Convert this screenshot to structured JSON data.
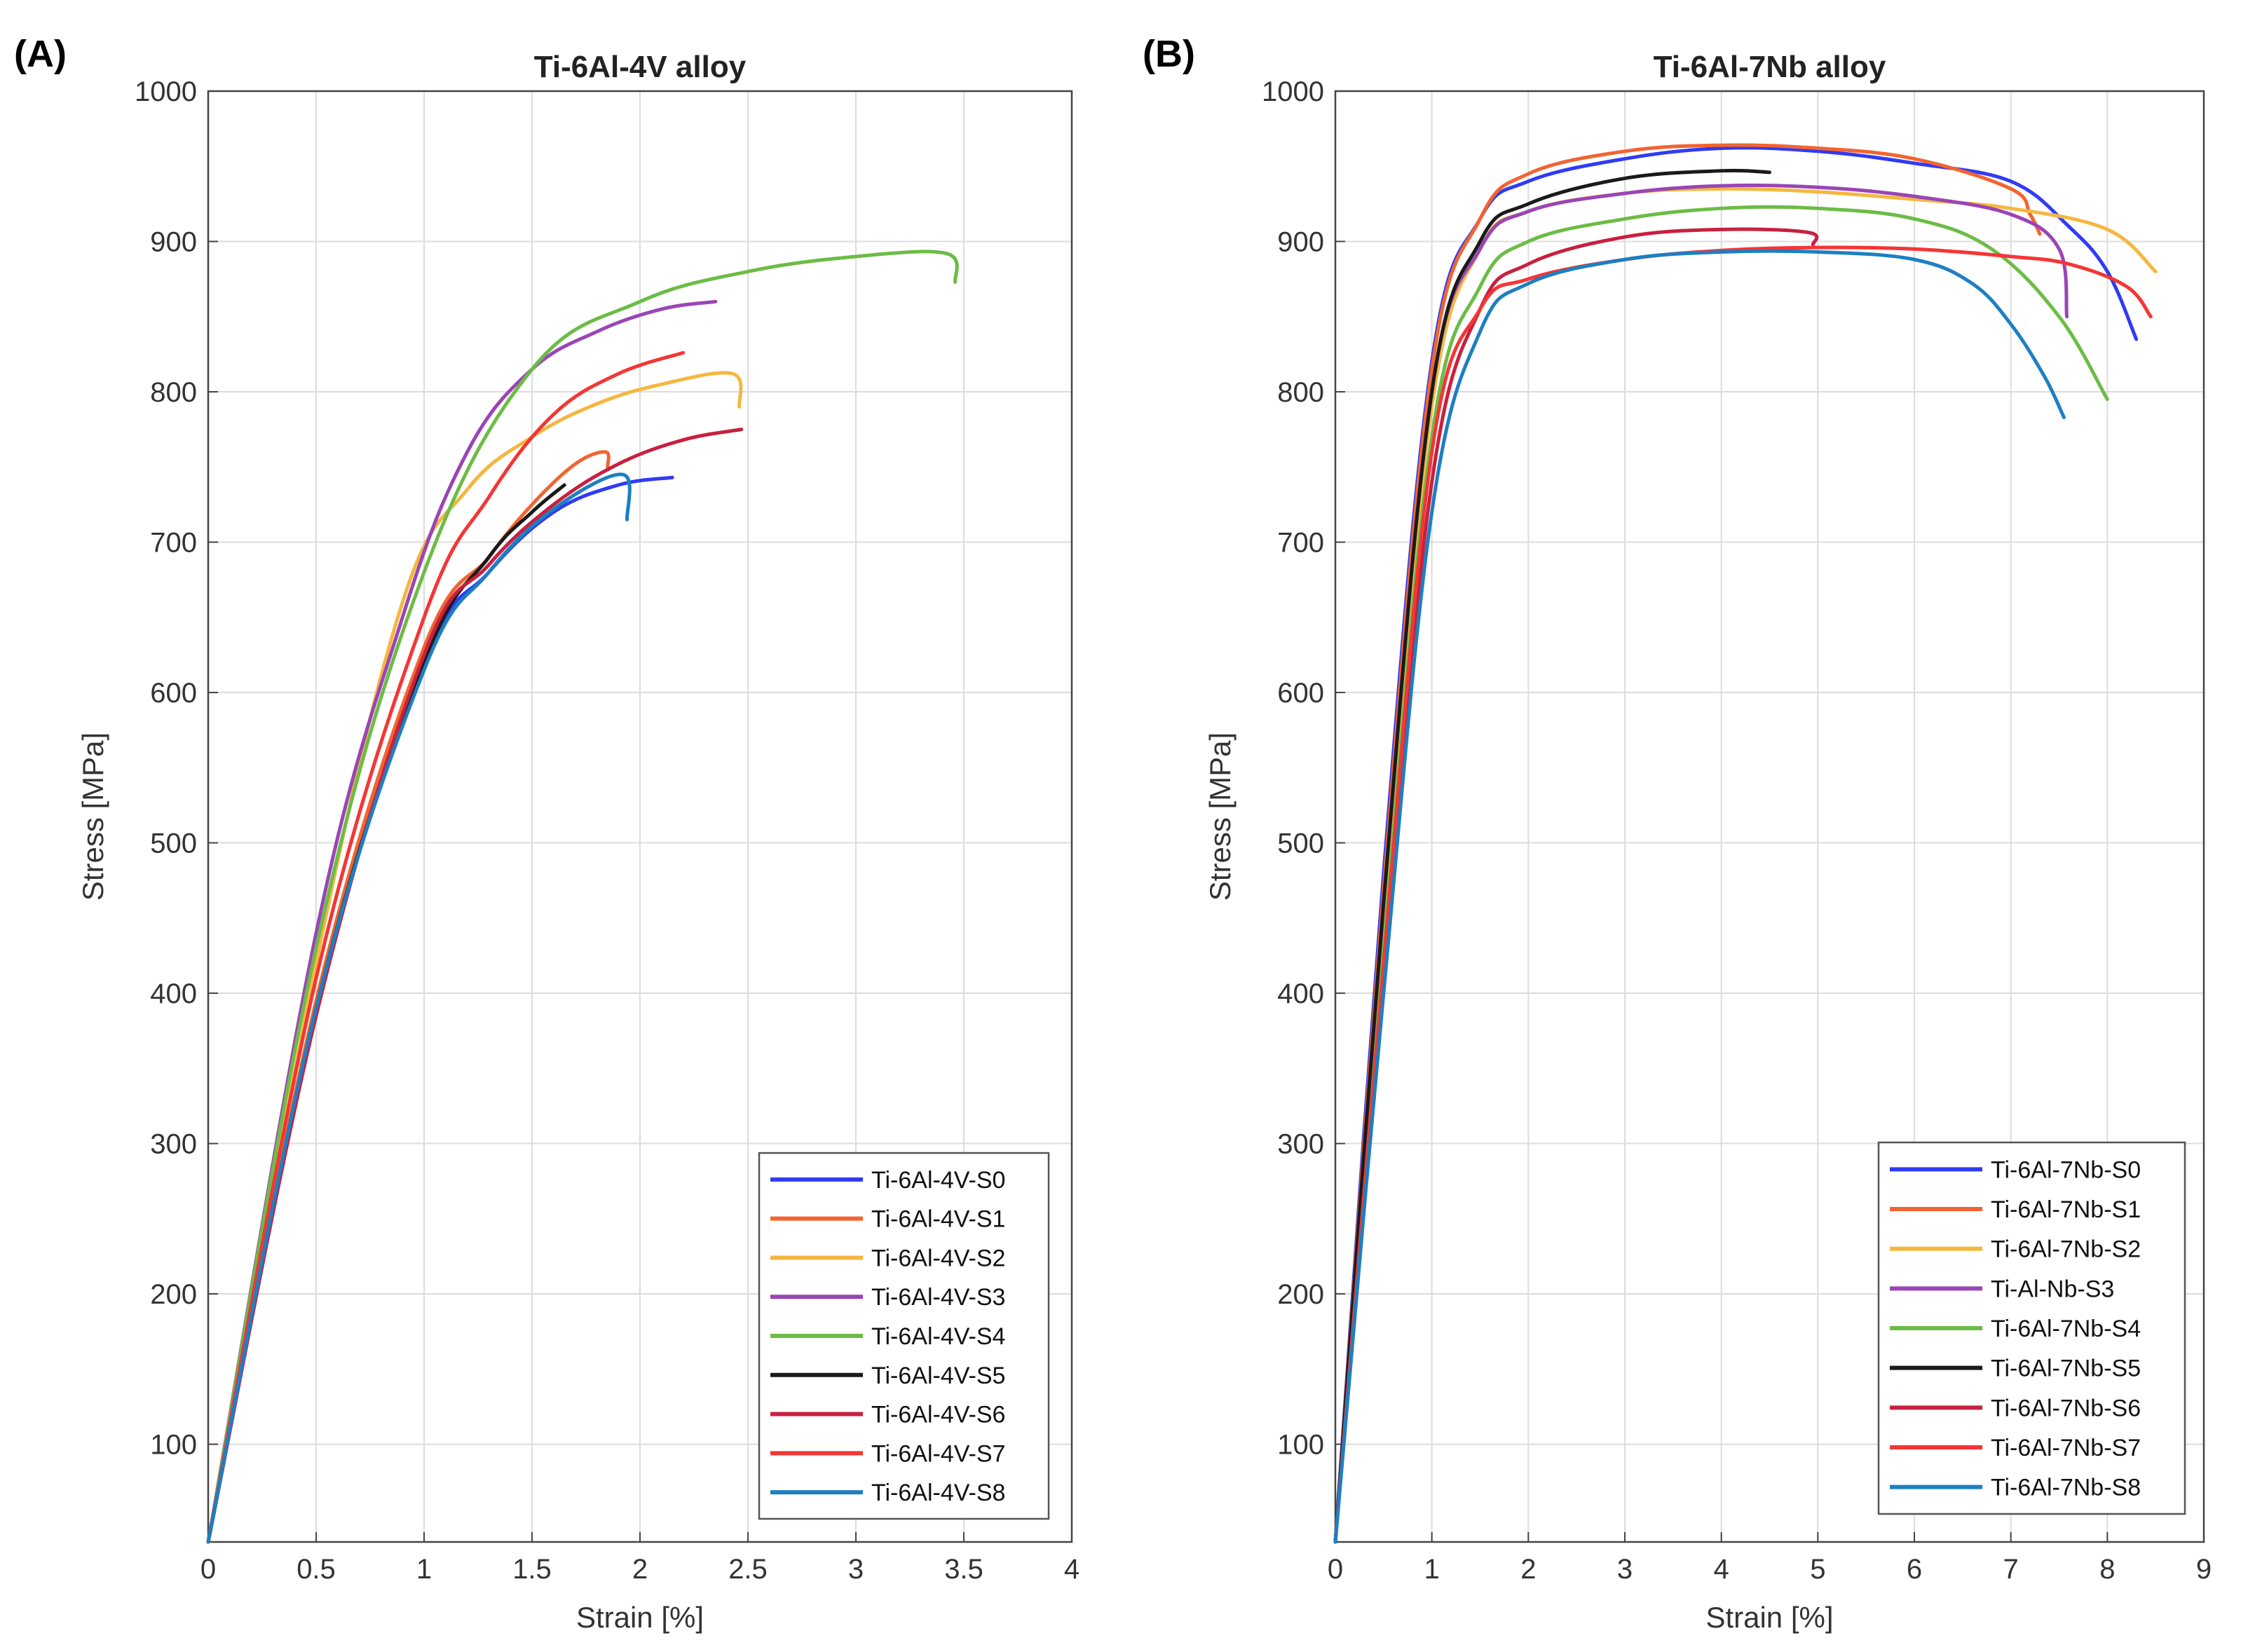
{
  "chart_data": [
    {
      "type": "line",
      "panel_label": "(A)",
      "title": "Ti-6Al-4V alloy",
      "xlabel": "Strain [%]",
      "ylabel": "Stress [MPa]",
      "xlim": [
        0,
        4
      ],
      "ylim": [
        35,
        1000
      ],
      "xticks": [
        0,
        0.5,
        1,
        1.5,
        2,
        2.5,
        3,
        3.5,
        4
      ],
      "xtick_labels": [
        "0",
        "0.5",
        "1",
        "1.5",
        "2",
        "2.5",
        "3",
        "3.5",
        "4"
      ],
      "yticks": [
        100,
        200,
        300,
        400,
        500,
        600,
        700,
        800,
        900,
        1000
      ],
      "ytick_labels": [
        "100",
        "200",
        "300",
        "400",
        "500",
        "600",
        "700",
        "800",
        "900",
        "1000"
      ],
      "grid": true,
      "legend_position": "bottom-right",
      "series": [
        {
          "name": "Ti-6Al-4V-S0",
          "color": "#2f3bf5",
          "points": [
            [
              0,
              35
            ],
            [
              0.5,
              390
            ],
            [
              1,
              620
            ],
            [
              1.3,
              680
            ],
            [
              1.6,
              720
            ],
            [
              1.9,
              738
            ],
            [
              2.15,
              743
            ]
          ]
        },
        {
          "name": "Ti-6Al-4V-S1",
          "color": "#f26430",
          "points": [
            [
              0,
              35
            ],
            [
              0.5,
              395
            ],
            [
              1,
              630
            ],
            [
              1.3,
              690
            ],
            [
              1.5,
              725
            ],
            [
              1.7,
              752
            ],
            [
              1.84,
              760
            ],
            [
              1.85,
              750
            ]
          ]
        },
        {
          "name": "Ti-6Al-4V-S2",
          "color": "#f5b740",
          "points": [
            [
              0,
              35
            ],
            [
              0.5,
              420
            ],
            [
              0.9,
              660
            ],
            [
              1.2,
              735
            ],
            [
              1.5,
              770
            ],
            [
              1.8,
              792
            ],
            [
              2.1,
              805
            ],
            [
              2.43,
              812
            ],
            [
              2.46,
              790
            ]
          ]
        },
        {
          "name": "Ti-6Al-4V-S3",
          "color": "#9a45b5",
          "points": [
            [
              0,
              35
            ],
            [
              0.5,
              440
            ],
            [
              0.9,
              650
            ],
            [
              1.2,
              760
            ],
            [
              1.5,
              815
            ],
            [
              1.8,
              840
            ],
            [
              2.1,
              855
            ],
            [
              2.35,
              860
            ]
          ]
        },
        {
          "name": "Ti-6Al-4V-S4",
          "color": "#6cbc45",
          "points": [
            [
              0,
              35
            ],
            [
              0.5,
              430
            ],
            [
              1,
              680
            ],
            [
              1.5,
              815
            ],
            [
              2,
              860
            ],
            [
              2.5,
              880
            ],
            [
              3,
              890
            ],
            [
              3.42,
              892
            ],
            [
              3.46,
              873
            ]
          ]
        },
        {
          "name": "Ti-6Al-4V-S5",
          "color": "#1a1a1a",
          "points": [
            [
              0,
              35
            ],
            [
              0.5,
              390
            ],
            [
              1,
              620
            ],
            [
              1.3,
              690
            ],
            [
              1.5,
              720
            ],
            [
              1.65,
              738
            ]
          ]
        },
        {
          "name": "Ti-6Al-4V-S6",
          "color": "#c8203f",
          "points": [
            [
              0,
              35
            ],
            [
              0.5,
              385
            ],
            [
              1,
              625
            ],
            [
              1.3,
              685
            ],
            [
              1.6,
              725
            ],
            [
              1.9,
              752
            ],
            [
              2.2,
              768
            ],
            [
              2.47,
              775
            ]
          ]
        },
        {
          "name": "Ti-6Al-4V-S7",
          "color": "#f53535",
          "points": [
            [
              0,
              35
            ],
            [
              0.5,
              410
            ],
            [
              1,
              650
            ],
            [
              1.3,
              730
            ],
            [
              1.6,
              785
            ],
            [
              1.9,
              812
            ],
            [
              2.2,
              826
            ]
          ]
        },
        {
          "name": "Ti-6Al-4V-S8",
          "color": "#1d7fc2",
          "points": [
            [
              0,
              35
            ],
            [
              0.5,
              390
            ],
            [
              1,
              615
            ],
            [
              1.3,
              680
            ],
            [
              1.6,
              722
            ],
            [
              1.92,
              745
            ],
            [
              1.94,
              715
            ]
          ]
        }
      ]
    },
    {
      "type": "line",
      "panel_label": "(B)",
      "title": "Ti-6Al-7Nb alloy",
      "xlabel": "Strain [%]",
      "ylabel": "Stress [MPa]",
      "xlim": [
        0,
        9
      ],
      "ylim": [
        35,
        1000
      ],
      "xticks": [
        0,
        1,
        2,
        3,
        4,
        5,
        6,
        7,
        8,
        9
      ],
      "xtick_labels": [
        "0",
        "1",
        "2",
        "3",
        "4",
        "5",
        "6",
        "7",
        "8",
        "9"
      ],
      "yticks": [
        100,
        200,
        300,
        400,
        500,
        600,
        700,
        800,
        900,
        1000
      ],
      "ytick_labels": [
        "100",
        "200",
        "300",
        "400",
        "500",
        "600",
        "700",
        "800",
        "900",
        "1000"
      ],
      "grid": true,
      "legend_position": "bottom-right",
      "series": [
        {
          "name": "Ti-6Al-7Nb-S0",
          "color": "#2f3bf5",
          "points": [
            [
              0,
              35
            ],
            [
              0.5,
              480
            ],
            [
              1,
              820
            ],
            [
              1.5,
              915
            ],
            [
              2,
              940
            ],
            [
              3,
              955
            ],
            [
              4,
              962
            ],
            [
              5,
              960
            ],
            [
              6,
              952
            ],
            [
              7,
              940
            ],
            [
              7.6,
              910
            ],
            [
              8,
              880
            ],
            [
              8.3,
              835
            ]
          ]
        },
        {
          "name": "Ti-6Al-7Nb-S1",
          "color": "#f26430",
          "points": [
            [
              0,
              35
            ],
            [
              0.5,
              470
            ],
            [
              1,
              815
            ],
            [
              1.5,
              915
            ],
            [
              2,
              945
            ],
            [
              3,
              960
            ],
            [
              4,
              964
            ],
            [
              5,
              962
            ],
            [
              6,
              955
            ],
            [
              7,
              935
            ],
            [
              7.2,
              918
            ],
            [
              7.3,
              905
            ]
          ]
        },
        {
          "name": "Ti-6Al-7Nb-S2",
          "color": "#f5b740",
          "points": [
            [
              0,
              35
            ],
            [
              0.5,
              450
            ],
            [
              1,
              790
            ],
            [
              1.5,
              895
            ],
            [
              2,
              920
            ],
            [
              3,
              932
            ],
            [
              4,
              935
            ],
            [
              5,
              933
            ],
            [
              6,
              928
            ],
            [
              7,
              922
            ],
            [
              8,
              908
            ],
            [
              8.5,
              880
            ]
          ]
        },
        {
          "name": "Ti-Al-Nb-S3",
          "color": "#9a45b5",
          "points": [
            [
              0,
              35
            ],
            [
              0.5,
              460
            ],
            [
              1,
              800
            ],
            [
              1.5,
              895
            ],
            [
              2,
              920
            ],
            [
              3,
              932
            ],
            [
              4,
              937
            ],
            [
              5,
              936
            ],
            [
              6,
              930
            ],
            [
              7,
              918
            ],
            [
              7.5,
              895
            ],
            [
              7.58,
              850
            ]
          ]
        },
        {
          "name": "Ti-6Al-7Nb-S4",
          "color": "#6cbc45",
          "points": [
            [
              0,
              35
            ],
            [
              0.5,
              430
            ],
            [
              1,
              770
            ],
            [
              1.5,
              870
            ],
            [
              2,
              900
            ],
            [
              3,
              915
            ],
            [
              4,
              922
            ],
            [
              5,
              922
            ],
            [
              6,
              915
            ],
            [
              6.8,
              895
            ],
            [
              7.5,
              850
            ],
            [
              8,
              795
            ]
          ]
        },
        {
          "name": "Ti-6Al-7Nb-S5",
          "color": "#1a1a1a",
          "points": [
            [
              0,
              35
            ],
            [
              0.5,
              460
            ],
            [
              1,
              800
            ],
            [
              1.5,
              900
            ],
            [
              2,
              925
            ],
            [
              3,
              942
            ],
            [
              4,
              947
            ],
            [
              4.5,
              946
            ]
          ]
        },
        {
          "name": "Ti-6Al-7Nb-S6",
          "color": "#c8203f",
          "points": [
            [
              0,
              35
            ],
            [
              0.5,
              410
            ],
            [
              1,
              740
            ],
            [
              1.5,
              855
            ],
            [
              2,
              885
            ],
            [
              3,
              903
            ],
            [
              4,
              908
            ],
            [
              4.9,
              906
            ],
            [
              4.95,
              898
            ]
          ]
        },
        {
          "name": "Ti-6Al-7Nb-S7",
          "color": "#f53535",
          "points": [
            [
              0,
              35
            ],
            [
              0.5,
              420
            ],
            [
              1,
              760
            ],
            [
              1.5,
              855
            ],
            [
              2,
              875
            ],
            [
              3,
              888
            ],
            [
              4,
              894
            ],
            [
              5,
              896
            ],
            [
              6,
              895
            ],
            [
              7,
              890
            ],
            [
              7.6,
              885
            ],
            [
              8.2,
              870
            ],
            [
              8.45,
              850
            ]
          ]
        },
        {
          "name": "Ti-6Al-7Nb-S8",
          "color": "#1d7fc2",
          "points": [
            [
              0,
              35
            ],
            [
              0.5,
              400
            ],
            [
              1,
              720
            ],
            [
              1.5,
              840
            ],
            [
              2,
              872
            ],
            [
              3,
              888
            ],
            [
              4,
              893
            ],
            [
              5,
              893
            ],
            [
              6,
              888
            ],
            [
              6.6,
              872
            ],
            [
              7,
              845
            ],
            [
              7.35,
              810
            ],
            [
              7.55,
              783
            ]
          ]
        }
      ]
    }
  ]
}
